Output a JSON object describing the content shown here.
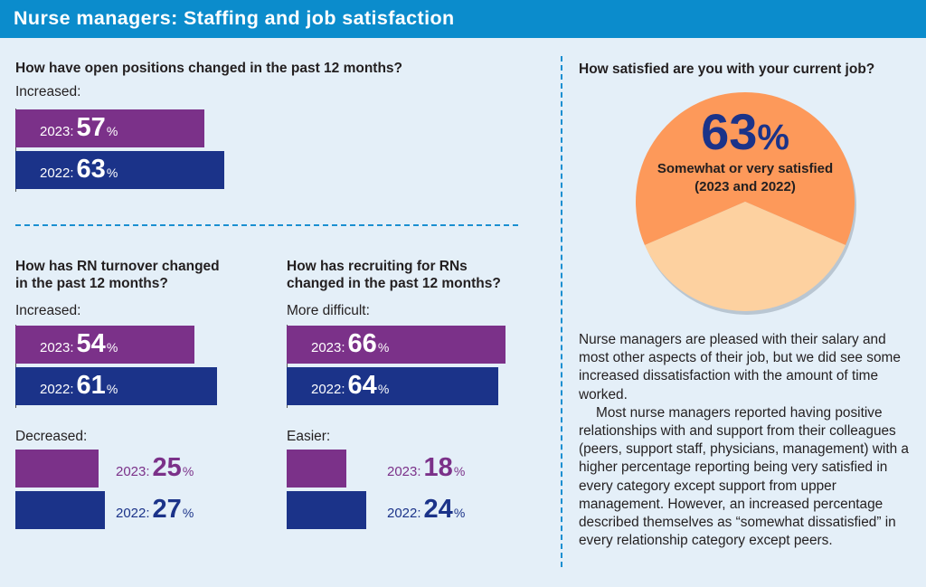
{
  "title": "Nurse managers: Staffing and job satisfaction",
  "colors": {
    "header": "#0b8ccc",
    "y2023": "#7b3189",
    "y2022": "#1b3389",
    "pie_main": "#fd995a",
    "pie_rest": "#fdd1a0",
    "divider": "#1a8fd1"
  },
  "open_positions": {
    "question": "How have open positions changed in the past 12 months?",
    "label": "Increased:"
  },
  "turnover": {
    "question_line1": "How has RN turnover changed",
    "question_line2": "in the past 12 months?",
    "label_increased": "Increased:",
    "label_decreased": "Decreased:"
  },
  "recruiting": {
    "question_line1": "How has recruiting for RNs",
    "question_line2": "changed in the past 12 months?",
    "label_harder": "More difficult:",
    "label_easier": "Easier:"
  },
  "satisfaction": {
    "question": "How satisfied are you with your current job?",
    "value": "63",
    "pct": "%",
    "caption_line1": "Somewhat or very satisfied",
    "caption_line2": "(2023 and 2022)"
  },
  "paragraphs": [
    "Nurse managers are pleased with their salary and most other aspects of their job, but we did see some increased dissatisfaction with the amount of time worked.",
    "Most nurse managers reported having positive relationships with and support from their colleagues (peers, support staff, physicians, management) with a higher percentage reporting being very satisfied in every category except support from upper management. However, an increased percentage described themselves as “somewhat dissatisfied” in every relationship category except peers."
  ],
  "chart_data": [
    {
      "type": "bar",
      "id": "open_increased",
      "categories": [
        "2023:",
        "2022:"
      ],
      "values": [
        57,
        63
      ],
      "unit": "%",
      "label_position": "inside"
    },
    {
      "type": "bar",
      "id": "turnover_increased",
      "categories": [
        "2023:",
        "2022:"
      ],
      "values": [
        54,
        61
      ],
      "unit": "%",
      "label_position": "inside"
    },
    {
      "type": "bar",
      "id": "turnover_decreased",
      "categories": [
        "2023:",
        "2022:"
      ],
      "values": [
        25,
        27
      ],
      "unit": "%",
      "label_position": "outside"
    },
    {
      "type": "bar",
      "id": "recruiting_harder",
      "categories": [
        "2023:",
        "2022:"
      ],
      "values": [
        66,
        64
      ],
      "unit": "%",
      "label_position": "inside"
    },
    {
      "type": "bar",
      "id": "recruiting_easier",
      "categories": [
        "2023:",
        "2022:"
      ],
      "values": [
        18,
        24
      ],
      "unit": "%",
      "label_position": "outside"
    },
    {
      "type": "pie",
      "id": "satisfaction",
      "values": [
        63,
        37
      ],
      "unit": "%"
    }
  ]
}
